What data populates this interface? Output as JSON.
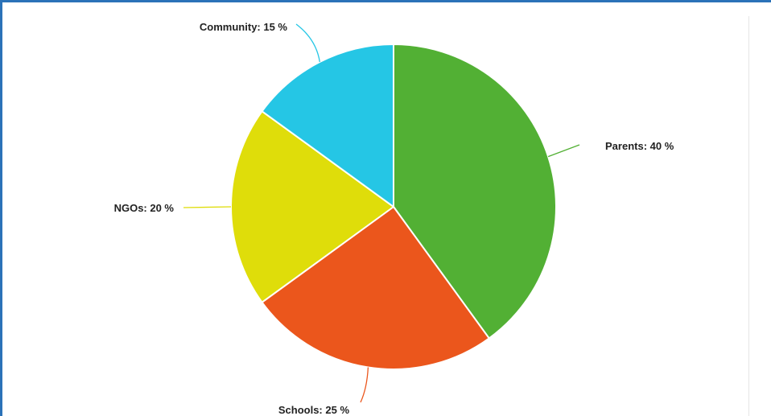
{
  "chart_data": {
    "type": "pie",
    "title": "",
    "slices": [
      {
        "label": "Parents: 40 %",
        "name": "Parents",
        "value": 40,
        "color": "#52b034"
      },
      {
        "label": "Schools: 25 %",
        "name": "Schools",
        "value": 25,
        "color": "#eb561c"
      },
      {
        "label": "NGOs: 20 %",
        "name": "NGOs",
        "value": 20,
        "color": "#dfdd0a"
      },
      {
        "label": "Community: 15 %",
        "name": "Community",
        "value": 15,
        "color": "#25c6e5"
      }
    ],
    "start_angle_degrees": 0,
    "direction": "clockwise",
    "legend": "none",
    "labels": "outside-with-leader-lines"
  },
  "colors": {
    "frame_border": "#2b72b8",
    "slice_border": "#ffffff",
    "label_text": "#222222"
  }
}
